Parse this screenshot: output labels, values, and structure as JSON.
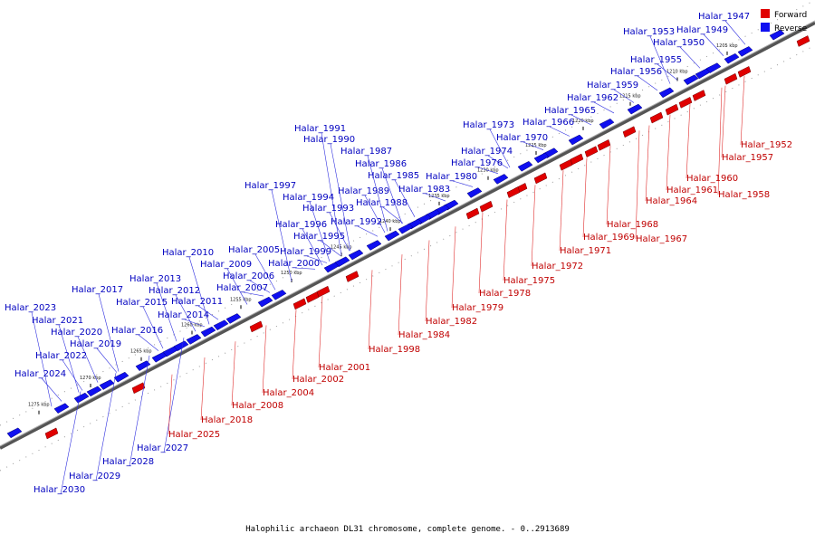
{
  "legend": {
    "forward_label": "Forward",
    "reverse_label": "Reverse",
    "forward_color": "#e00000",
    "reverse_color": "#1010f0"
  },
  "caption": "Halophilic archaeon DL31 chromosome, complete genome. - 0..2913689",
  "kbp_ticks": [
    "1205 kbp",
    "1210 kbp",
    "1215 kbp",
    "1220 kbp",
    "1225 kbp",
    "1230 kbp",
    "1235 kbp",
    "1240 kbp",
    "1245 kbp",
    "1250 kbp",
    "1255 kbp",
    "1260 kbp",
    "1265 kbp",
    "1270 kbp",
    "1275 kbp"
  ],
  "reverse_genes": [
    "Halar_1947",
    "Halar_1949",
    "Halar_1953",
    "Halar_1950",
    "Halar_1955",
    "Halar_1956",
    "Halar_1959",
    "Halar_1962",
    "Halar_1965",
    "Halar_1973",
    "Halar_1966",
    "Halar_1970",
    "Halar_1974",
    "Halar_1976",
    "Halar_1980",
    "Halar_1983",
    "Halar_1985",
    "Halar_1986",
    "Halar_1987",
    "Halar_1988",
    "Halar_1989",
    "Halar_1990",
    "Halar_1991",
    "Halar_1992",
    "Halar_1993",
    "Halar_1994",
    "Halar_1995",
    "Halar_1996",
    "Halar_1997",
    "Halar_1999",
    "Halar_2000",
    "Halar_2005",
    "Halar_2006",
    "Halar_2007",
    "Halar_2009",
    "Halar_2010",
    "Halar_2011",
    "Halar_2012",
    "Halar_2013",
    "Halar_2014",
    "Halar_2015",
    "Halar_2016",
    "Halar_2017",
    "Halar_2019",
    "Halar_2020",
    "Halar_2021",
    "Halar_2022",
    "Halar_2023",
    "Halar_2024",
    "Halar_2027",
    "Halar_2028",
    "Halar_2029",
    "Halar_2030"
  ],
  "forward_genes": [
    "Halar_1952",
    "Halar_1957",
    "Halar_1958",
    "Halar_1960",
    "Halar_1961",
    "Halar_1964",
    "Halar_1967",
    "Halar_1968",
    "Halar_1969",
    "Halar_1971",
    "Halar_1972",
    "Halar_1975",
    "Halar_1978",
    "Halar_1979",
    "Halar_1982",
    "Halar_1984",
    "Halar_1998",
    "Halar_2001",
    "Halar_2002",
    "Halar_2004",
    "Halar_2008",
    "Halar_2018",
    "Halar_2025"
  ]
}
